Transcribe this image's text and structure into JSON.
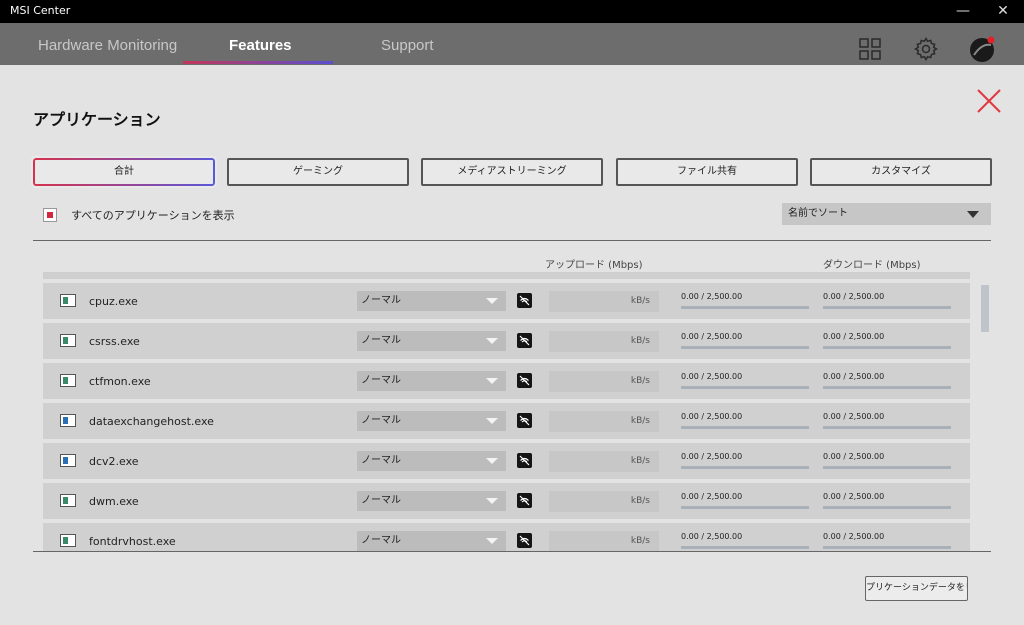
{
  "window": {
    "title": "MSI Center"
  },
  "nav": {
    "tabs": [
      {
        "label": "Hardware Monitoring"
      },
      {
        "label": "Features"
      },
      {
        "label": "Support"
      }
    ]
  },
  "page": {
    "title": "アプリケーション",
    "filters": [
      "合計",
      "ゲーミング",
      "メディアストリーミング",
      "ファイル共有",
      "カスタマイズ"
    ],
    "show_all_label": "すべてのアプリケーションを表示",
    "show_all_checked": true,
    "sort_value": "名前でソート",
    "columns": {
      "upload": "アップロード (Mbps)",
      "download": "ダウンロード (Mbps)"
    },
    "reset_label": "プリケーションデータをリセッ"
  },
  "apps": [
    {
      "name": "cpuz.exe",
      "priority": "ノーマル",
      "unit": "kB/s",
      "upload": "0.00 / 2,500.00",
      "download": "0.00 / 2,500.00",
      "icon_color": "#3a8a6a"
    },
    {
      "name": "csrss.exe",
      "priority": "ノーマル",
      "unit": "kB/s",
      "upload": "0.00 / 2,500.00",
      "download": "0.00 / 2,500.00",
      "icon_color": "#3a8a6a"
    },
    {
      "name": "ctfmon.exe",
      "priority": "ノーマル",
      "unit": "kB/s",
      "upload": "0.00 / 2,500.00",
      "download": "0.00 / 2,500.00",
      "icon_color": "#3a8a6a"
    },
    {
      "name": "dataexchangehost.exe",
      "priority": "ノーマル",
      "unit": "kB/s",
      "upload": "0.00 / 2,500.00",
      "download": "0.00 / 2,500.00",
      "icon_color": "#2a6fb3"
    },
    {
      "name": "dcv2.exe",
      "priority": "ノーマル",
      "unit": "kB/s",
      "upload": "0.00 / 2,500.00",
      "download": "0.00 / 2,500.00",
      "icon_color": "#2a6fb3"
    },
    {
      "name": "dwm.exe",
      "priority": "ノーマル",
      "unit": "kB/s",
      "upload": "0.00 / 2,500.00",
      "download": "0.00 / 2,500.00",
      "icon_color": "#3a8a6a"
    },
    {
      "name": "fontdrvhost.exe",
      "priority": "ノーマル",
      "unit": "kB/s",
      "upload": "0.00 / 2,500.00",
      "download": "0.00 / 2,500.00",
      "icon_color": "#3a8a6a"
    }
  ],
  "colors": {
    "accent_red": "#d4263c",
    "accent_purple": "#5a58d8",
    "nav_bg": "#6d6d6d"
  }
}
